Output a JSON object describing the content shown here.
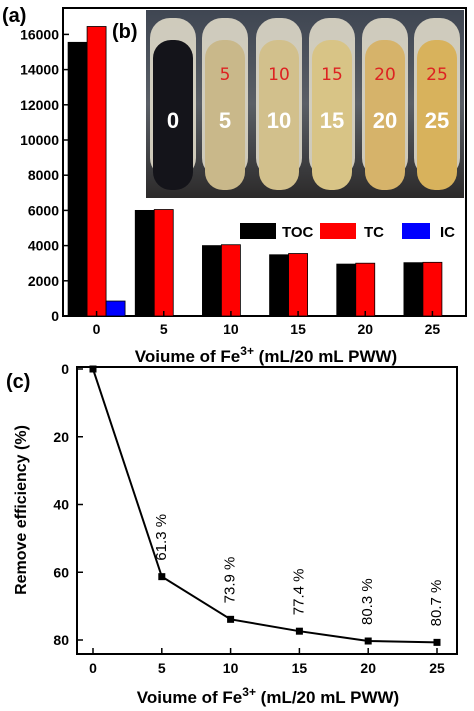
{
  "chart_data": [
    {
      "panel": "(a)",
      "type": "bar",
      "categories": [
        "0",
        "5",
        "10",
        "15",
        "20",
        "25"
      ],
      "series": [
        {
          "name": "TOC",
          "color": "#000000",
          "values": [
            15550,
            6000,
            4000,
            3480,
            2950,
            3030
          ]
        },
        {
          "name": "TC",
          "color": "#ff0000",
          "values": [
            16450,
            6050,
            4050,
            3550,
            3000,
            3050
          ]
        },
        {
          "name": "IC",
          "color": "#0000ff",
          "values": [
            850,
            null,
            null,
            null,
            null,
            null
          ]
        }
      ],
      "yticks": [
        "0",
        "2000",
        "4000",
        "6000",
        "8000",
        "10000",
        "12000",
        "14000",
        "16000"
      ],
      "ylim": [
        0,
        17500
      ],
      "xlabel": {
        "main": "Voiume of Fe",
        "sup": "3+",
        "rest": " (mL/20 mL PWW)"
      },
      "ylabel": "",
      "legend_position": "center-right"
    },
    {
      "panel": "(c)",
      "type": "line",
      "x": [
        0,
        5,
        10,
        15,
        20,
        25
      ],
      "y": [
        0,
        61.3,
        73.9,
        77.4,
        80.3,
        80.7
      ],
      "point_labels": [
        "",
        "61.3 %",
        "73.9 %",
        "77.4 %",
        "80.3 %",
        "80.7 %"
      ],
      "xticks": [
        "0",
        "5",
        "10",
        "15",
        "20",
        "25"
      ],
      "yticks": [
        "0",
        "20",
        "40",
        "60",
        "80"
      ],
      "ylim": [
        0,
        85
      ],
      "y_inverted": true,
      "xlabel": {
        "main": "Voiume of Fe",
        "sup": "3+",
        "rest": " (mL/20 mL PWW)"
      },
      "ylabel": "Remove efficiency (%)"
    }
  ],
  "inset_photo": {
    "panel": "(b)",
    "tube_labels": [
      "0",
      "5",
      "10",
      "15",
      "20",
      "25"
    ],
    "cap_labels": [
      "",
      "5",
      "10",
      "15",
      "20",
      "25"
    ]
  }
}
